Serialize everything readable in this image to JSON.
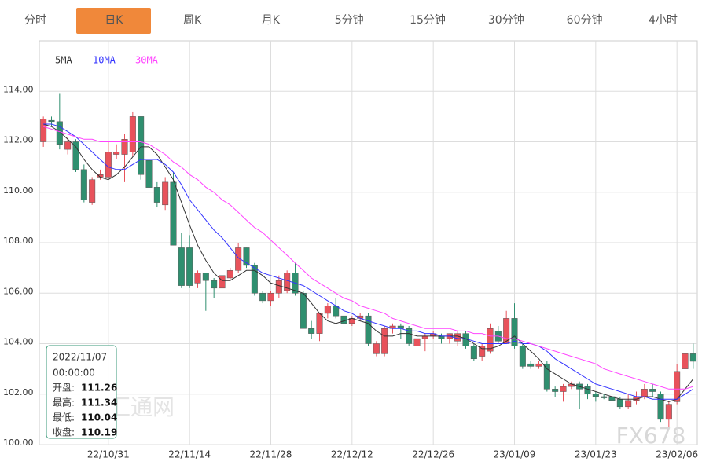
{
  "tabs": {
    "items": [
      "分时",
      "日K",
      "周K",
      "月K",
      "5分钟",
      "15分钟",
      "30分钟",
      "60分钟",
      "4小时"
    ],
    "active": 1
  },
  "chart_data": {
    "type": "candlestick",
    "categories": [
      null,
      null,
      null,
      null,
      null,
      null,
      null,
      null,
      "22/10/31",
      null,
      null,
      null,
      null,
      null,
      null,
      null,
      null,
      null,
      "22/11/14",
      null,
      null,
      null,
      null,
      null,
      null,
      null,
      null,
      null,
      "22/11/28",
      null,
      null,
      null,
      null,
      null,
      null,
      null,
      null,
      null,
      "22/12/12",
      null,
      null,
      null,
      null,
      null,
      null,
      null,
      null,
      null,
      "22/12/26",
      null,
      null,
      null,
      null,
      null,
      null,
      null,
      null,
      null,
      "23/01/09",
      null,
      null,
      null,
      null,
      null,
      null,
      null,
      null,
      null,
      "23/01/23",
      null,
      null,
      null,
      null,
      null,
      null,
      null,
      null,
      null,
      "23/02/06",
      null,
      null
    ],
    "candles": {
      "open": [
        112.0,
        112.85,
        112.8,
        111.7,
        112.0,
        110.9,
        109.6,
        110.6,
        110.6,
        111.5,
        111.5,
        111.6,
        113.0,
        111.26,
        110.2,
        109.5,
        110.4,
        107.8,
        107.8,
        106.4,
        106.8,
        106.5,
        106.2,
        106.6,
        106.9,
        107.8,
        107.1,
        106.0,
        105.7,
        106.0,
        106.1,
        106.8,
        106.0,
        104.6,
        104.4,
        105.2,
        105.5,
        105.1,
        104.8,
        105.0,
        105.1,
        103.6,
        103.6,
        104.6,
        104.7,
        104.6,
        103.9,
        104.2,
        104.3,
        104.3,
        104.2,
        104.1,
        104.4,
        103.9,
        103.5,
        103.7,
        104.5,
        104.0,
        105.0,
        103.9,
        103.2,
        103.1,
        103.2,
        102.2,
        102.1,
        102.3,
        102.4,
        102.3,
        102.0,
        101.9,
        101.9,
        101.8,
        101.5,
        101.75,
        101.9,
        102.2,
        102.0,
        101.0,
        101.7,
        103.0,
        103.6
      ],
      "high": [
        113.0,
        113.0,
        113.9,
        112.2,
        112.1,
        111.1,
        110.6,
        110.9,
        112.0,
        111.9,
        112.3,
        113.2,
        113.0,
        111.34,
        110.4,
        110.6,
        110.8,
        108.4,
        108.3,
        106.9,
        106.8,
        106.6,
        106.9,
        107.0,
        108.0,
        107.8,
        107.2,
        106.1,
        106.1,
        106.7,
        106.9,
        107.2,
        106.1,
        104.9,
        105.2,
        105.6,
        105.8,
        105.2,
        105.1,
        105.2,
        105.2,
        104.1,
        104.7,
        104.8,
        104.8,
        104.7,
        104.3,
        104.4,
        104.5,
        104.4,
        104.4,
        104.5,
        104.5,
        104.0,
        104.0,
        104.8,
        104.7,
        105.3,
        105.6,
        104.0,
        103.3,
        103.3,
        103.3,
        102.3,
        102.4,
        102.5,
        102.5,
        102.4,
        102.1,
        102.0,
        102.0,
        101.9,
        102.0,
        102.1,
        102.4,
        102.4,
        102.1,
        101.7,
        103.2,
        103.7,
        104.0
      ],
      "low": [
        111.8,
        112.6,
        111.7,
        111.5,
        110.8,
        109.6,
        109.5,
        110.5,
        110.5,
        111.3,
        110.4,
        111.4,
        110.5,
        110.04,
        109.4,
        109.3,
        107.9,
        106.2,
        106.2,
        106.2,
        105.3,
        105.8,
        106.0,
        106.5,
        106.8,
        107.0,
        105.9,
        105.6,
        105.5,
        105.8,
        106.0,
        105.9,
        104.6,
        104.2,
        104.1,
        105.0,
        105.0,
        104.6,
        104.7,
        104.9,
        103.9,
        103.5,
        103.5,
        104.4,
        104.2,
        103.9,
        103.8,
        103.7,
        104.2,
        104.0,
        104.0,
        103.9,
        103.8,
        103.3,
        103.3,
        103.6,
        104.0,
        104.0,
        103.8,
        103.0,
        103.0,
        103.0,
        102.1,
        101.9,
        101.7,
        102.2,
        101.4,
        101.8,
        101.7,
        101.8,
        101.4,
        101.4,
        101.4,
        101.6,
        101.8,
        101.9,
        100.9,
        100.7,
        101.6,
        102.9,
        103.0
      ],
      "close": [
        112.9,
        112.8,
        111.9,
        112.0,
        110.9,
        109.7,
        110.5,
        110.7,
        111.6,
        111.6,
        112.1,
        113.0,
        110.7,
        110.19,
        109.6,
        110.4,
        107.9,
        106.3,
        106.3,
        106.8,
        106.5,
        106.2,
        106.7,
        106.9,
        107.8,
        107.1,
        106.0,
        105.7,
        106.0,
        106.5,
        106.8,
        106.0,
        104.6,
        104.4,
        105.2,
        105.5,
        105.1,
        104.8,
        105.0,
        105.1,
        104.0,
        104.0,
        104.6,
        104.7,
        104.6,
        104.0,
        104.2,
        104.3,
        104.4,
        104.2,
        104.4,
        104.4,
        103.9,
        103.4,
        103.9,
        104.6,
        104.1,
        105.0,
        103.9,
        103.1,
        103.1,
        103.2,
        102.2,
        102.1,
        102.3,
        102.4,
        102.2,
        102.0,
        101.9,
        101.85,
        101.75,
        101.5,
        101.75,
        101.9,
        102.2,
        102.1,
        101.0,
        101.6,
        102.9,
        103.6,
        103.3
      ]
    },
    "up_color": "#e8525b",
    "down_color": "#2f8f6f",
    "series": [
      {
        "name": "5MA",
        "color": "#333333",
        "values": [
          112.7,
          112.6,
          112.4,
          112.1,
          111.8,
          111.3,
          110.9,
          110.6,
          110.5,
          110.7,
          111.0,
          111.4,
          111.8,
          111.8,
          111.5,
          111.0,
          110.5,
          109.6,
          108.7,
          107.9,
          107.3,
          106.8,
          106.5,
          106.5,
          106.7,
          106.9,
          106.9,
          106.7,
          106.4,
          106.3,
          106.2,
          106.1,
          106.0,
          105.6,
          105.2,
          104.9,
          104.8,
          104.9,
          105.0,
          104.9,
          104.8,
          104.5,
          104.3,
          104.3,
          104.4,
          104.4,
          104.3,
          104.3,
          104.3,
          104.3,
          104.3,
          104.3,
          104.2,
          104.0,
          103.8,
          103.8,
          103.9,
          104.1,
          104.3,
          104.0,
          103.7,
          103.4,
          103.0,
          102.8,
          102.6,
          102.4,
          102.3,
          102.2,
          102.1,
          102.0,
          101.9,
          101.8,
          101.8,
          101.8,
          101.9,
          101.9,
          101.8,
          101.7,
          101.8,
          102.2,
          102.6
        ]
      },
      {
        "name": "10MA",
        "color": "#3333ff",
        "values": [
          112.7,
          112.7,
          112.6,
          112.4,
          112.2,
          111.9,
          111.6,
          111.3,
          111.0,
          110.9,
          110.9,
          111.1,
          111.3,
          111.3,
          111.3,
          111.1,
          110.8,
          110.3,
          109.7,
          109.3,
          108.9,
          108.5,
          108.2,
          107.8,
          107.4,
          107.2,
          107.0,
          106.8,
          106.7,
          106.6,
          106.5,
          106.4,
          106.3,
          106.1,
          105.9,
          105.7,
          105.5,
          105.3,
          105.2,
          105.0,
          104.9,
          104.8,
          104.7,
          104.6,
          104.6,
          104.5,
          104.5,
          104.4,
          104.4,
          104.3,
          104.3,
          104.2,
          104.2,
          104.1,
          104.0,
          104.0,
          104.0,
          104.0,
          104.1,
          104.0,
          104.0,
          103.9,
          103.7,
          103.4,
          103.2,
          103.0,
          102.8,
          102.6,
          102.4,
          102.3,
          102.2,
          102.1,
          102.0,
          101.9,
          101.9,
          101.8,
          101.8,
          101.8,
          101.8,
          102.0,
          102.2
        ]
      },
      {
        "name": "30MA",
        "color": "#ff44ff",
        "values": [
          112.6,
          112.5,
          112.4,
          112.3,
          112.2,
          112.1,
          112.1,
          112.0,
          112.0,
          112.0,
          112.0,
          112.0,
          112.0,
          111.9,
          111.7,
          111.5,
          111.2,
          111.0,
          110.7,
          110.5,
          110.2,
          110.0,
          109.7,
          109.5,
          109.2,
          108.9,
          108.6,
          108.4,
          108.1,
          107.8,
          107.5,
          107.2,
          106.9,
          106.6,
          106.4,
          106.2,
          106.0,
          105.8,
          105.7,
          105.5,
          105.4,
          105.3,
          105.2,
          105.0,
          104.9,
          104.8,
          104.7,
          104.6,
          104.6,
          104.6,
          104.6,
          104.5,
          104.5,
          104.4,
          104.4,
          104.3,
          104.3,
          104.2,
          104.2,
          104.1,
          104.0,
          103.9,
          103.8,
          103.7,
          103.6,
          103.5,
          103.4,
          103.3,
          103.2,
          103.0,
          102.9,
          102.8,
          102.7,
          102.6,
          102.5,
          102.4,
          102.3,
          102.2,
          102.2,
          102.2,
          102.3
        ]
      }
    ],
    "ylim": [
      100,
      116
    ],
    "yticks": [
      {
        "value": 100,
        "label": "100.00"
      },
      {
        "value": 102,
        "label": "102.00"
      },
      {
        "value": 104,
        "label": "104.00"
      },
      {
        "value": 106,
        "label": "106.00"
      },
      {
        "value": 108,
        "label": "108.00"
      },
      {
        "value": 110,
        "label": "110.00"
      },
      {
        "value": 112,
        "label": "112.00"
      },
      {
        "value": 114,
        "label": "114.00"
      }
    ],
    "grid": true
  },
  "tooltip": {
    "date": "2022/11/07",
    "time": "00:00:00",
    "rows": [
      {
        "label": "开盘:",
        "value": "111.26"
      },
      {
        "label": "最高:",
        "value": "111.34"
      },
      {
        "label": "最低:",
        "value": "110.04"
      },
      {
        "label": "收盘:",
        "value": "110.19"
      }
    ]
  },
  "watermarks": [
    "汇通网",
    "FX678"
  ]
}
